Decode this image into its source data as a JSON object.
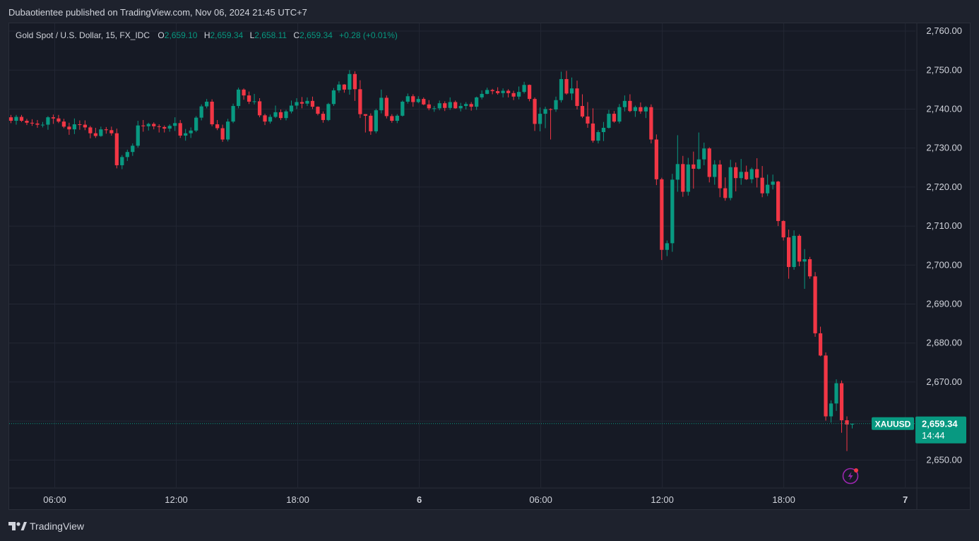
{
  "header": {
    "published_text": "Dubaotientee published on TradingView.com, Nov 06, 2024 21:45 UTC+7"
  },
  "legend": {
    "symbol_text": "Gold Spot / U.S. Dollar, 15, FX_IDC",
    "o_label": "O",
    "o_value": "2,659.10",
    "h_label": "H",
    "h_value": "2,659.34",
    "l_label": "L",
    "l_value": "2,658.11",
    "c_label": "C",
    "c_value": "2,659.34",
    "change": "+0.28 (+0.01%)"
  },
  "price_tag": {
    "symbol": "XAUUSD",
    "price": "2,659.34",
    "countdown": "14:44"
  },
  "footer": {
    "brand": "TradingView"
  },
  "colors": {
    "up": "#089981",
    "down": "#f23645",
    "grid": "#232734",
    "background": "#161a25",
    "text": "#d1d4dc"
  },
  "chart_data": {
    "type": "candlestick",
    "symbol": "XAUUSD",
    "interval": "15",
    "ylim": [
      2643,
      2762
    ],
    "y_ticks": [
      "2,760.00",
      "2,750.00",
      "2,740.00",
      "2,730.00",
      "2,720.00",
      "2,710.00",
      "2,700.00",
      "2,690.00",
      "2,680.00",
      "2,670.00",
      "2,660.00",
      "2,650.00"
    ],
    "y_tick_values": [
      2760,
      2750,
      2740,
      2730,
      2720,
      2710,
      2700,
      2690,
      2680,
      2670,
      2660,
      2650
    ],
    "x_ticks": [
      "06:00",
      "12:00",
      "18:00",
      "6",
      "06:00",
      "12:00",
      "18:00",
      "7"
    ],
    "x_tick_hours": [
      6,
      12,
      18,
      24,
      30,
      36,
      42,
      48
    ],
    "x_bold": [
      false,
      false,
      false,
      true,
      false,
      false,
      false,
      true
    ],
    "x_range_hours": [
      3.75,
      48.5
    ],
    "last_price": 2659.34,
    "candles": [
      [
        2737.9,
        2738.5,
        2736.4,
        2737.0
      ],
      [
        2737.0,
        2738.5,
        2736.0,
        2738.0
      ],
      [
        2738.0,
        2738.5,
        2736.7,
        2737.0
      ],
      [
        2737.0,
        2737.5,
        2735.9,
        2736.5
      ],
      [
        2736.5,
        2737.4,
        2735.7,
        2736.3
      ],
      [
        2736.3,
        2737.2,
        2735.2,
        2736.0
      ],
      [
        2736.0,
        2736.7,
        2735.3,
        2736.0
      ],
      [
        2736.0,
        2738.2,
        2734.7,
        2737.9
      ],
      [
        2737.9,
        2738.6,
        2736.2,
        2737.6
      ],
      [
        2737.6,
        2738.5,
        2736.4,
        2736.8
      ],
      [
        2736.8,
        2737.5,
        2735.1,
        2735.5
      ],
      [
        2735.5,
        2736.5,
        2733.4,
        2734.8
      ],
      [
        2734.8,
        2737.6,
        2733.6,
        2736.1
      ],
      [
        2736.1,
        2737.1,
        2734.7,
        2736.0
      ],
      [
        2736.0,
        2737.1,
        2734.6,
        2735.3
      ],
      [
        2735.3,
        2735.7,
        2732.5,
        2733.8
      ],
      [
        2733.8,
        2735.2,
        2732.6,
        2733.1
      ],
      [
        2733.1,
        2735.5,
        2732.9,
        2734.8
      ],
      [
        2734.8,
        2735.4,
        2733.7,
        2734.6
      ],
      [
        2734.6,
        2735.5,
        2733.2,
        2733.8
      ],
      [
        2733.8,
        2735.0,
        2724.8,
        2725.6
      ],
      [
        2725.6,
        2728.2,
        2724.6,
        2727.7
      ],
      [
        2727.7,
        2729.6,
        2726.7,
        2729.0
      ],
      [
        2729.0,
        2731.2,
        2728.0,
        2730.6
      ],
      [
        2730.6,
        2737.0,
        2730.1,
        2735.8
      ],
      [
        2735.8,
        2737.2,
        2734.2,
        2735.6
      ],
      [
        2735.6,
        2736.5,
        2734.5,
        2736.2
      ],
      [
        2736.2,
        2736.6,
        2734.8,
        2735.6
      ],
      [
        2735.6,
        2736.1,
        2734.0,
        2735.4
      ],
      [
        2735.4,
        2735.8,
        2734.0,
        2735.0
      ],
      [
        2735.0,
        2736.1,
        2734.2,
        2735.7
      ],
      [
        2735.7,
        2737.9,
        2734.4,
        2736.4
      ],
      [
        2736.4,
        2737.2,
        2732.6,
        2733.2
      ],
      [
        2733.2,
        2734.9,
        2731.9,
        2733.8
      ],
      [
        2733.8,
        2735.3,
        2732.6,
        2734.5
      ],
      [
        2734.5,
        2738.2,
        2734.1,
        2737.8
      ],
      [
        2737.8,
        2741.2,
        2737.1,
        2740.7
      ],
      [
        2740.7,
        2742.6,
        2740.2,
        2741.9
      ],
      [
        2741.9,
        2742.5,
        2735.6,
        2736.1
      ],
      [
        2736.1,
        2737.2,
        2734.6,
        2735.1
      ],
      [
        2735.1,
        2736.0,
        2731.6,
        2732.2
      ],
      [
        2732.2,
        2737.5,
        2731.7,
        2736.8
      ],
      [
        2736.8,
        2741.4,
        2736.4,
        2740.8
      ],
      [
        2740.8,
        2745.5,
        2740.2,
        2745.0
      ],
      [
        2745.0,
        2745.3,
        2742.4,
        2743.5
      ],
      [
        2743.5,
        2744.5,
        2741.3,
        2741.9
      ],
      [
        2741.9,
        2743.9,
        2741.2,
        2742.0
      ],
      [
        2742.0,
        2742.8,
        2737.9,
        2738.4
      ],
      [
        2738.4,
        2738.8,
        2735.9,
        2736.8
      ],
      [
        2736.8,
        2738.6,
        2736.3,
        2738.0
      ],
      [
        2738.0,
        2740.9,
        2737.7,
        2739.2
      ],
      [
        2739.2,
        2739.9,
        2737.2,
        2737.7
      ],
      [
        2737.7,
        2739.8,
        2737.1,
        2739.4
      ],
      [
        2739.4,
        2742.2,
        2738.9,
        2740.9
      ],
      [
        2740.9,
        2742.8,
        2740.0,
        2741.8
      ],
      [
        2741.8,
        2743.1,
        2740.2,
        2741.4
      ],
      [
        2741.4,
        2743.0,
        2740.8,
        2742.1
      ],
      [
        2742.1,
        2743.2,
        2740.0,
        2740.6
      ],
      [
        2740.6,
        2740.7,
        2738.4,
        2738.8
      ],
      [
        2738.8,
        2739.4,
        2736.5,
        2737.2
      ],
      [
        2737.2,
        2741.6,
        2736.9,
        2741.3
      ],
      [
        2741.3,
        2745.4,
        2740.8,
        2744.8
      ],
      [
        2744.8,
        2747.1,
        2744.2,
        2746.3
      ],
      [
        2746.3,
        2746.4,
        2744.2,
        2745.0
      ],
      [
        2745.0,
        2750.0,
        2743.7,
        2749.0
      ],
      [
        2749.0,
        2749.7,
        2742.1,
        2745.1
      ],
      [
        2745.1,
        2747.4,
        2737.7,
        2738.7
      ],
      [
        2738.7,
        2738.7,
        2734.0,
        2738.3
      ],
      [
        2738.3,
        2738.9,
        2733.4,
        2734.3
      ],
      [
        2734.3,
        2740.1,
        2733.8,
        2739.7
      ],
      [
        2739.7,
        2745.0,
        2738.9,
        2742.9
      ],
      [
        2742.9,
        2743.5,
        2737.6,
        2738.2
      ],
      [
        2738.2,
        2738.7,
        2736.5,
        2737.0
      ],
      [
        2737.0,
        2738.7,
        2736.4,
        2738.3
      ],
      [
        2738.3,
        2742.2,
        2738.1,
        2741.9
      ],
      [
        2741.9,
        2744.0,
        2741.4,
        2743.3
      ],
      [
        2743.3,
        2743.8,
        2740.6,
        2741.8
      ],
      [
        2741.8,
        2743.3,
        2741.5,
        2742.6
      ],
      [
        2742.6,
        2743.0,
        2741.0,
        2741.2
      ],
      [
        2741.2,
        2742.3,
        2739.7,
        2740.2
      ],
      [
        2740.2,
        2740.8,
        2739.3,
        2740.2
      ],
      [
        2740.2,
        2742.2,
        2739.7,
        2741.5
      ],
      [
        2741.5,
        2742.0,
        2739.5,
        2740.3
      ],
      [
        2740.3,
        2743.0,
        2739.8,
        2741.8
      ],
      [
        2741.8,
        2742.2,
        2740.1,
        2740.2
      ],
      [
        2740.2,
        2741.6,
        2739.4,
        2740.8
      ],
      [
        2740.8,
        2741.8,
        2739.9,
        2741.3
      ],
      [
        2741.3,
        2741.8,
        2739.6,
        2740.6
      ],
      [
        2740.6,
        2743.2,
        2739.8,
        2743.0
      ],
      [
        2743.0,
        2744.8,
        2742.5,
        2743.9
      ],
      [
        2743.9,
        2745.5,
        2743.8,
        2744.9
      ],
      [
        2744.9,
        2745.2,
        2743.8,
        2744.6
      ],
      [
        2744.6,
        2745.6,
        2743.7,
        2744.1
      ],
      [
        2744.1,
        2745.3,
        2743.0,
        2744.7
      ],
      [
        2744.7,
        2745.1,
        2743.0,
        2744.1
      ],
      [
        2744.1,
        2744.7,
        2742.3,
        2743.2
      ],
      [
        2743.2,
        2745.8,
        2742.5,
        2744.4
      ],
      [
        2744.4,
        2747.0,
        2744.0,
        2746.2
      ],
      [
        2746.2,
        2746.3,
        2742.0,
        2742.6
      ],
      [
        2742.6,
        2743.0,
        2734.4,
        2736.2
      ],
      [
        2736.2,
        2740.4,
        2734.3,
        2738.8
      ],
      [
        2738.8,
        2740.6,
        2735.1,
        2740.0
      ],
      [
        2740.0,
        2740.2,
        2732.2,
        2739.9
      ],
      [
        2739.9,
        2743.2,
        2739.3,
        2742.3
      ],
      [
        2742.3,
        2749.6,
        2741.7,
        2747.7
      ],
      [
        2747.7,
        2749.8,
        2743.7,
        2744.0
      ],
      [
        2744.0,
        2748.1,
        2742.3,
        2745.3
      ],
      [
        2745.3,
        2747.3,
        2739.9,
        2740.8
      ],
      [
        2740.8,
        2743.8,
        2737.7,
        2738.1
      ],
      [
        2738.1,
        2741.8,
        2735.2,
        2736.3
      ],
      [
        2736.3,
        2740.2,
        2731.4,
        2731.9
      ],
      [
        2731.9,
        2734.6,
        2731.2,
        2734.1
      ],
      [
        2734.1,
        2736.7,
        2731.8,
        2735.2
      ],
      [
        2735.2,
        2739.8,
        2735.0,
        2738.8
      ],
      [
        2738.8,
        2739.5,
        2736.5,
        2736.8
      ],
      [
        2736.8,
        2741.3,
        2736.3,
        2740.5
      ],
      [
        2740.5,
        2743.5,
        2739.4,
        2742.1
      ],
      [
        2742.1,
        2743.8,
        2739.2,
        2739.5
      ],
      [
        2739.5,
        2740.9,
        2738.0,
        2740.5
      ],
      [
        2740.5,
        2741.7,
        2738.8,
        2739.4
      ],
      [
        2739.4,
        2740.8,
        2737.7,
        2740.5
      ],
      [
        2740.5,
        2741.2,
        2731.2,
        2732.2
      ],
      [
        2732.2,
        2733.5,
        2720.5,
        2722.0
      ],
      [
        2722.0,
        2722.4,
        2701.3,
        2703.9
      ],
      [
        2703.9,
        2706.3,
        2702.3,
        2705.6
      ],
      [
        2705.6,
        2723.4,
        2703.4,
        2721.9
      ],
      [
        2721.9,
        2733.3,
        2718.8,
        2725.9
      ],
      [
        2725.9,
        2728.0,
        2717.5,
        2718.8
      ],
      [
        2718.8,
        2727.5,
        2717.8,
        2725.8
      ],
      [
        2725.8,
        2729.1,
        2719.6,
        2724.7
      ],
      [
        2724.7,
        2734.0,
        2724.5,
        2727.1
      ],
      [
        2727.1,
        2731.4,
        2725.6,
        2729.9
      ],
      [
        2729.9,
        2730.2,
        2721.2,
        2722.6
      ],
      [
        2722.6,
        2726.9,
        2720.6,
        2725.8
      ],
      [
        2725.8,
        2726.9,
        2717.4,
        2719.7
      ],
      [
        2719.7,
        2722.5,
        2716.5,
        2717.2
      ],
      [
        2717.2,
        2727.0,
        2716.6,
        2725.1
      ],
      [
        2725.1,
        2726.3,
        2718.9,
        2722.3
      ],
      [
        2722.3,
        2727.2,
        2720.6,
        2723.9
      ],
      [
        2723.9,
        2725.5,
        2721.8,
        2722.0
      ],
      [
        2722.0,
        2725.0,
        2721.0,
        2724.6
      ],
      [
        2724.6,
        2727.4,
        2719.9,
        2722.4
      ],
      [
        2722.4,
        2725.4,
        2717.4,
        2718.4
      ],
      [
        2718.4,
        2723.2,
        2717.7,
        2720.6
      ],
      [
        2720.6,
        2723.2,
        2719.4,
        2721.4
      ],
      [
        2721.4,
        2721.6,
        2710.0,
        2711.3
      ],
      [
        2711.3,
        2711.5,
        2706.3,
        2707.1
      ],
      [
        2707.1,
        2709.1,
        2696.5,
        2699.5
      ],
      [
        2699.5,
        2708.9,
        2698.8,
        2707.5
      ],
      [
        2707.5,
        2707.9,
        2699.7,
        2700.9
      ],
      [
        2700.9,
        2704.1,
        2693.9,
        2701.5
      ],
      [
        2701.5,
        2702.1,
        2696.5,
        2697.1
      ],
      [
        2697.1,
        2698.2,
        2681.6,
        2682.5
      ],
      [
        2682.5,
        2684.2,
        2676.6,
        2676.8
      ],
      [
        2676.8,
        2677.6,
        2660.1,
        2661.2
      ],
      [
        2661.2,
        2665.3,
        2659.6,
        2664.5
      ],
      [
        2664.5,
        2670.7,
        2662.6,
        2669.7
      ],
      [
        2669.7,
        2670.4,
        2657.0,
        2660.2
      ],
      [
        2660.2,
        2661.2,
        2652.3,
        2659.1
      ],
      [
        2659.1,
        2659.3,
        2658.1,
        2659.3
      ]
    ]
  }
}
